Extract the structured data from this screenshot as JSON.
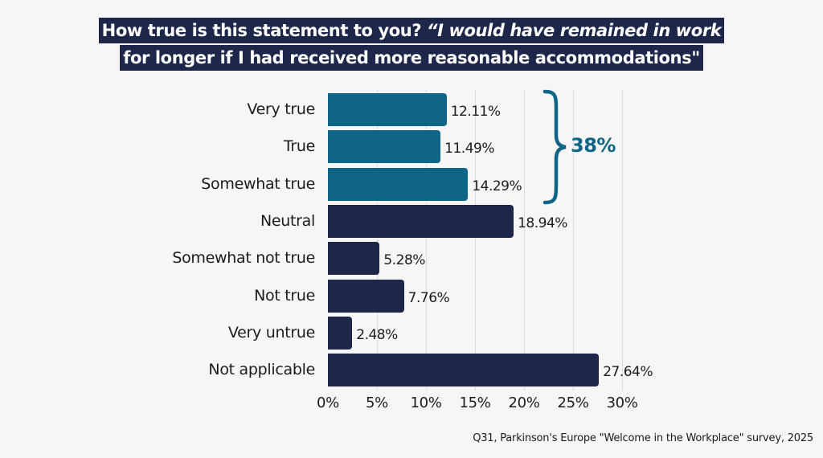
{
  "title": {
    "line1_plain": "How true is this statement to you? ",
    "line1_quote": "“I would have remained in work",
    "line2_quote": "for longer if I had received more reasonable accommodations\""
  },
  "colors": {
    "highlight": "#0e6585",
    "default": "#1e2749",
    "background": "#f6f6f6",
    "gridline": "#dcdcdc"
  },
  "bracket": {
    "label": "38%",
    "covers": [
      "Very true",
      "True",
      "Somewhat true"
    ]
  },
  "source": "Q31, Parkinson's Europe \"Welcome in the Workplace\" survey, 2025",
  "chart_data": {
    "type": "bar",
    "orientation": "horizontal",
    "title": "How true is this statement to you? “I would have remained in work for longer if I had received more reasonable accommodations\"",
    "categories": [
      "Very true",
      "True",
      "Somewhat true",
      "Neutral",
      "Somewhat not true",
      "Not true",
      "Very untrue",
      "Not applicable"
    ],
    "values": [
      12.11,
      11.49,
      14.29,
      18.94,
      5.28,
      7.76,
      2.48,
      27.64
    ],
    "value_labels": [
      "12.11%",
      "11.49%",
      "14.29%",
      "18.94%",
      "5.28%",
      "7.76%",
      "2.48%",
      "27.64%"
    ],
    "highlighted": [
      true,
      true,
      true,
      false,
      false,
      false,
      false,
      false
    ],
    "xlabel": "",
    "ylabel": "",
    "xlim": [
      0,
      30
    ],
    "x_ticks": [
      "0%",
      "5%",
      "10%",
      "15%",
      "20%",
      "25%",
      "30%"
    ],
    "x_tick_values": [
      0,
      5,
      10,
      15,
      20,
      25,
      30
    ],
    "grid": "vertical",
    "legend": null,
    "annotations": [
      {
        "text": "38%",
        "type": "brace",
        "span": [
          "Very true",
          "Somewhat true"
        ]
      }
    ],
    "source": "Q31, Parkinson's Europe \"Welcome in the Workplace\" survey, 2025"
  }
}
